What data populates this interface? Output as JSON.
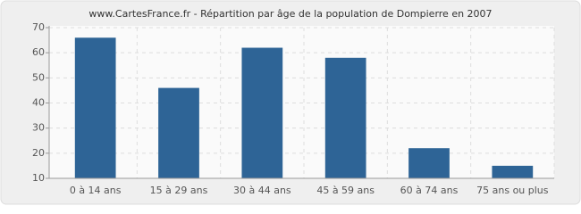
{
  "chart_data": {
    "type": "bar",
    "title": "www.CartesFrance.fr - Répartition par âge de la population de Dompierre en 2007",
    "categories": [
      "0 à 14 ans",
      "15 à 29 ans",
      "30 à 44 ans",
      "45 à 59 ans",
      "60 à 74 ans",
      "75 ans ou plus"
    ],
    "values": [
      66,
      46,
      62,
      58,
      22,
      15
    ],
    "color": "#2e6496",
    "ylim": [
      10,
      70
    ],
    "yticks": [
      10,
      20,
      30,
      40,
      50,
      60,
      70
    ],
    "grid": true
  }
}
